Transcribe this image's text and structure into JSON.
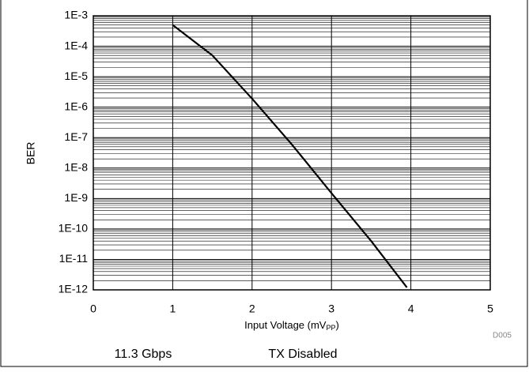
{
  "chart_data": {
    "type": "line",
    "ylabel": "BER",
    "xlabel": [
      "Input Voltage (mV",
      "PP",
      ")"
    ],
    "annotations": [
      "D005",
      "11.3 Gbps",
      "TX Disabled"
    ],
    "x": [
      1,
      1.5,
      2,
      2.5,
      3,
      3.5,
      3.95
    ],
    "series": [
      {
        "color": "#000000",
        "values": [
          0.0005,
          5e-05,
          1.9e-06,
          6e-08,
          1.5e-09,
          4e-11,
          1.2e-12
        ]
      }
    ],
    "xlim": [
      0,
      5
    ],
    "xticks": [
      0,
      1,
      2,
      3,
      4,
      5
    ],
    "ylog": true,
    "ylim": [
      1e-12,
      0.001
    ],
    "yticks": [
      {
        "value": 0.001,
        "label": "1E-3"
      },
      {
        "value": 0.0001,
        "label": "1E-4"
      },
      {
        "value": 1e-05,
        "label": "1E-5"
      },
      {
        "value": 1e-06,
        "label": "1E-6"
      },
      {
        "value": 1e-07,
        "label": "1E-7"
      },
      {
        "value": 1e-08,
        "label": "1E-8"
      },
      {
        "value": 1e-09,
        "label": "1E-9"
      },
      {
        "value": 1e-10,
        "label": "1E-10"
      },
      {
        "value": 1e-11,
        "label": "1E-11"
      },
      {
        "value": 1e-12,
        "label": "1E-12"
      }
    ],
    "grid": true,
    "minor_grid": true
  }
}
